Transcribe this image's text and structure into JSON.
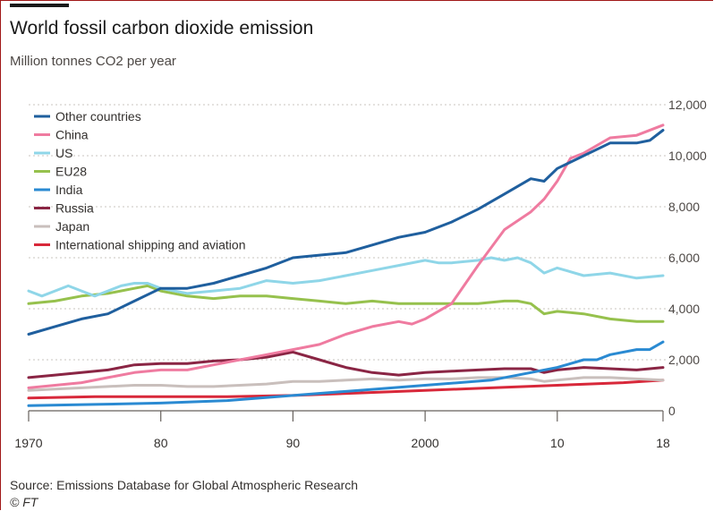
{
  "title": "World fossil carbon dioxide emission",
  "subtitle": "Million tonnes CO2 per year",
  "source": "Source: Emissions Database for Global Atmospheric Research",
  "credit": "© FT",
  "chart_data": {
    "type": "line",
    "title": "World fossil carbon dioxide emission",
    "ylabel": "Million tonnes CO2 per year",
    "xlim": [
      1970,
      2018
    ],
    "ylim": [
      0,
      12000
    ],
    "x_ticks": [
      {
        "value": 1970,
        "label": "1970"
      },
      {
        "value": 1980,
        "label": "80"
      },
      {
        "value": 1990,
        "label": "90"
      },
      {
        "value": 2000,
        "label": "2000"
      },
      {
        "value": 2010,
        "label": "10"
      },
      {
        "value": 2018,
        "label": "18"
      }
    ],
    "y_ticks": [
      {
        "value": 0,
        "label": "0"
      },
      {
        "value": 2000,
        "label": "2,000"
      },
      {
        "value": 4000,
        "label": "4,000"
      },
      {
        "value": 6000,
        "label": "6,000"
      },
      {
        "value": 8000,
        "label": "8,000"
      },
      {
        "value": 10000,
        "label": "10,000"
      },
      {
        "value": 12000,
        "label": "12,000"
      }
    ],
    "grid": "horizontal",
    "legend_position": "top-left",
    "series": [
      {
        "name": "Other countries",
        "color": "#1f5f9e",
        "x": [
          1970,
          1972,
          1974,
          1976,
          1978,
          1980,
          1982,
          1984,
          1986,
          1988,
          1990,
          1992,
          1994,
          1996,
          1998,
          2000,
          2002,
          2004,
          2006,
          2008,
          2009,
          2010,
          2012,
          2014,
          2016,
          2017,
          2018
        ],
        "y": [
          3000,
          3300,
          3600,
          3800,
          4300,
          4800,
          4800,
          5000,
          5300,
          5600,
          6000,
          6100,
          6200,
          6500,
          6800,
          7000,
          7400,
          7900,
          8500,
          9100,
          9000,
          9500,
          10000,
          10500,
          10500,
          10600,
          11000
        ]
      },
      {
        "name": "China",
        "color": "#ef7ba0",
        "x": [
          1970,
          1972,
          1974,
          1976,
          1978,
          1980,
          1982,
          1984,
          1986,
          1988,
          1990,
          1992,
          1994,
          1996,
          1998,
          1999,
          2000,
          2002,
          2004,
          2006,
          2008,
          2009,
          2010,
          2011,
          2012,
          2014,
          2016,
          2018
        ],
        "y": [
          900,
          1000,
          1100,
          1300,
          1500,
          1600,
          1600,
          1800,
          2000,
          2200,
          2400,
          2600,
          3000,
          3300,
          3500,
          3400,
          3600,
          4200,
          5700,
          7100,
          7800,
          8300,
          9000,
          9900,
          10100,
          10700,
          10800,
          11200
        ]
      },
      {
        "name": "US",
        "color": "#8fd6e8",
        "x": [
          1970,
          1971,
          1972,
          1973,
          1974,
          1975,
          1976,
          1977,
          1978,
          1979,
          1980,
          1982,
          1984,
          1986,
          1988,
          1990,
          1992,
          1994,
          1996,
          1998,
          2000,
          2001,
          2002,
          2004,
          2005,
          2006,
          2007,
          2008,
          2009,
          2010,
          2012,
          2014,
          2016,
          2018
        ],
        "y": [
          4700,
          4500,
          4700,
          4900,
          4700,
          4500,
          4700,
          4900,
          5000,
          5000,
          4800,
          4600,
          4700,
          4800,
          5100,
          5000,
          5100,
          5300,
          5500,
          5700,
          5900,
          5800,
          5800,
          5900,
          6000,
          5900,
          6000,
          5800,
          5400,
          5600,
          5300,
          5400,
          5200,
          5300
        ]
      },
      {
        "name": "EU28",
        "color": "#96c14d",
        "x": [
          1970,
          1972,
          1974,
          1976,
          1978,
          1979,
          1980,
          1982,
          1984,
          1986,
          1988,
          1990,
          1992,
          1994,
          1996,
          1998,
          2000,
          2002,
          2004,
          2006,
          2007,
          2008,
          2009,
          2010,
          2012,
          2014,
          2016,
          2018
        ],
        "y": [
          4200,
          4300,
          4500,
          4600,
          4800,
          4900,
          4700,
          4500,
          4400,
          4500,
          4500,
          4400,
          4300,
          4200,
          4300,
          4200,
          4200,
          4200,
          4200,
          4300,
          4300,
          4200,
          3800,
          3900,
          3800,
          3600,
          3500,
          3500
        ]
      },
      {
        "name": "India",
        "color": "#2a8ad2",
        "x": [
          1970,
          1975,
          1980,
          1985,
          1990,
          1995,
          2000,
          2005,
          2008,
          2010,
          2012,
          2013,
          2014,
          2016,
          2017,
          2018
        ],
        "y": [
          200,
          250,
          300,
          400,
          600,
          800,
          1000,
          1200,
          1500,
          1700,
          2000,
          2000,
          2200,
          2400,
          2400,
          2700
        ]
      },
      {
        "name": "Russia",
        "color": "#8a2544",
        "x": [
          1970,
          1972,
          1974,
          1976,
          1978,
          1980,
          1982,
          1984,
          1986,
          1988,
          1990,
          1992,
          1994,
          1996,
          1998,
          2000,
          2002,
          2004,
          2006,
          2008,
          2009,
          2010,
          2012,
          2014,
          2016,
          2018
        ],
        "y": [
          1300,
          1400,
          1500,
          1600,
          1800,
          1850,
          1850,
          1950,
          2000,
          2100,
          2300,
          2000,
          1700,
          1500,
          1400,
          1500,
          1550,
          1600,
          1650,
          1650,
          1500,
          1600,
          1700,
          1650,
          1600,
          1700
        ]
      },
      {
        "name": "Japan",
        "color": "#c9bfbc",
        "x": [
          1970,
          1972,
          1974,
          1976,
          1978,
          1980,
          1982,
          1984,
          1986,
          1988,
          1990,
          1992,
          1994,
          1996,
          1998,
          2000,
          2002,
          2004,
          2006,
          2008,
          2009,
          2010,
          2012,
          2014,
          2016,
          2018
        ],
        "y": [
          800,
          850,
          900,
          950,
          1000,
          1000,
          950,
          950,
          1000,
          1050,
          1150,
          1150,
          1200,
          1250,
          1200,
          1250,
          1250,
          1300,
          1300,
          1250,
          1150,
          1200,
          1300,
          1300,
          1250,
          1200
        ]
      },
      {
        "name": "International shipping and aviation",
        "color": "#d8283a",
        "x": [
          1970,
          1975,
          1980,
          1985,
          1990,
          1995,
          2000,
          2005,
          2010,
          2015,
          2018
        ],
        "y": [
          500,
          550,
          550,
          550,
          600,
          700,
          800,
          900,
          1000,
          1100,
          1200
        ]
      }
    ]
  }
}
